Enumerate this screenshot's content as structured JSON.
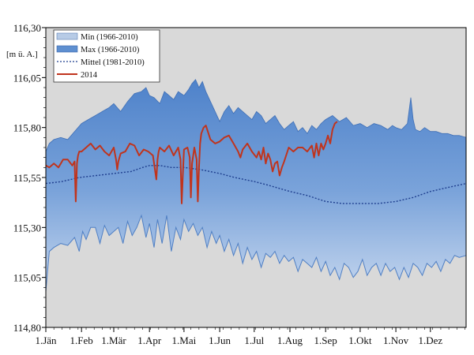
{
  "chart_data": {
    "type": "area",
    "unit_label": "[m ü. A.]",
    "ylim": [
      114.8,
      116.3
    ],
    "y_ticks": [
      "116,30",
      "116,05",
      "115,80",
      "115,55",
      "115,30",
      "115,05",
      "114,80"
    ],
    "y_tick_values": [
      116.3,
      116.05,
      115.8,
      115.55,
      115.3,
      115.05,
      114.8
    ],
    "x_ticks": [
      "1.Jän",
      "1.Feb",
      "1.Mär",
      "1.Apr",
      "1.Mai",
      "1.Jun",
      "1.Jul",
      "1.Aug",
      "1.Sep",
      "1.Okt",
      "1.Nov",
      "1.Dez"
    ],
    "x_tick_days": [
      1,
      32,
      60,
      91,
      121,
      152,
      182,
      213,
      244,
      274,
      305,
      335
    ],
    "xlim": [
      1,
      366
    ],
    "legend": [
      {
        "label": "Min (1966-2010)",
        "kind": "fill-light",
        "color": "#b7cbe6"
      },
      {
        "label": "Max  (1966-2010)",
        "kind": "fill-dark",
        "color": "#5e8fd0"
      },
      {
        "label": "Mittel  (1981-2010)",
        "kind": "dotted",
        "color": "#1f3f8f"
      },
      {
        "label": "2014",
        "kind": "line",
        "color": "#c0341d"
      }
    ],
    "colors": {
      "background": "#d9d9d9",
      "max_fill": "#5b8ed1",
      "min_line": "#4f7fc4",
      "mittel": "#1f3f8f",
      "year_2014": "#c0341d"
    },
    "series": [
      {
        "name": "Max  (1966-2010)",
        "x": [
          1,
          4,
          8,
          14,
          20,
          26,
          32,
          38,
          44,
          50,
          56,
          60,
          66,
          72,
          78,
          84,
          88,
          91,
          95,
          100,
          104,
          108,
          112,
          116,
          121,
          125,
          128,
          131,
          134,
          137,
          140,
          144,
          148,
          152,
          156,
          160,
          164,
          168,
          172,
          176,
          180,
          184,
          188,
          192,
          196,
          200,
          204,
          208,
          212,
          216,
          220,
          224,
          228,
          232,
          236,
          240,
          244,
          250,
          256,
          262,
          268,
          274,
          280,
          286,
          292,
          298,
          302,
          305,
          310,
          315,
          318,
          320,
          322,
          326,
          330,
          335,
          340,
          345,
          350,
          355,
          360,
          366
        ],
        "y": [
          115.68,
          115.72,
          115.74,
          115.75,
          115.74,
          115.78,
          115.82,
          115.84,
          115.86,
          115.88,
          115.9,
          115.92,
          115.88,
          115.93,
          115.97,
          115.98,
          116.0,
          115.96,
          115.95,
          115.92,
          115.98,
          115.96,
          115.94,
          115.98,
          115.96,
          115.99,
          116.02,
          116.04,
          116.0,
          116.03,
          115.98,
          115.93,
          115.88,
          115.83,
          115.88,
          115.91,
          115.87,
          115.9,
          115.88,
          115.86,
          115.84,
          115.88,
          115.86,
          115.82,
          115.84,
          115.86,
          115.82,
          115.79,
          115.81,
          115.83,
          115.78,
          115.8,
          115.77,
          115.81,
          115.79,
          115.82,
          115.84,
          115.86,
          115.83,
          115.85,
          115.81,
          115.82,
          115.8,
          115.82,
          115.81,
          115.79,
          115.81,
          115.8,
          115.79,
          115.82,
          115.95,
          115.84,
          115.79,
          115.78,
          115.8,
          115.78,
          115.78,
          115.77,
          115.77,
          115.76,
          115.76,
          115.75
        ]
      },
      {
        "name": "Mittel  (1981-2010)",
        "x": [
          1,
          15,
          30,
          45,
          60,
          75,
          85,
          91,
          100,
          110,
          121,
          135,
          152,
          165,
          182,
          195,
          213,
          228,
          244,
          258,
          274,
          290,
          305,
          320,
          335,
          350,
          366
        ],
        "y": [
          115.52,
          115.53,
          115.55,
          115.56,
          115.57,
          115.58,
          115.6,
          115.61,
          115.61,
          115.6,
          115.6,
          115.59,
          115.57,
          115.55,
          115.53,
          115.51,
          115.48,
          115.46,
          115.43,
          115.42,
          115.42,
          115.42,
          115.43,
          115.45,
          115.48,
          115.5,
          115.52
        ]
      },
      {
        "name": "Min (1966-2010)",
        "x": [
          1,
          4,
          8,
          14,
          20,
          26,
          30,
          33,
          36,
          40,
          44,
          48,
          52,
          56,
          60,
          64,
          68,
          72,
          76,
          80,
          84,
          88,
          91,
          95,
          98,
          102,
          106,
          110,
          114,
          118,
          121,
          125,
          129,
          133,
          137,
          141,
          145,
          149,
          152,
          156,
          160,
          164,
          168,
          172,
          176,
          180,
          184,
          188,
          192,
          196,
          200,
          204,
          208,
          212,
          216,
          220,
          224,
          228,
          232,
          236,
          240,
          244,
          248,
          252,
          256,
          260,
          264,
          268,
          272,
          276,
          280,
          284,
          288,
          292,
          296,
          300,
          304,
          308,
          312,
          316,
          320,
          324,
          328,
          332,
          336,
          340,
          344,
          348,
          352,
          356,
          360,
          366
        ],
        "y": [
          114.98,
          115.18,
          115.2,
          115.22,
          115.21,
          115.25,
          115.18,
          115.28,
          115.24,
          115.3,
          115.3,
          115.22,
          115.31,
          115.26,
          115.28,
          115.3,
          115.22,
          115.33,
          115.26,
          115.3,
          115.36,
          115.25,
          115.32,
          115.2,
          115.34,
          115.22,
          115.36,
          115.18,
          115.3,
          115.24,
          115.34,
          115.28,
          115.32,
          115.26,
          115.3,
          115.2,
          115.28,
          115.22,
          115.26,
          115.18,
          115.24,
          115.16,
          115.22,
          115.12,
          115.2,
          115.14,
          115.18,
          115.1,
          115.17,
          115.15,
          115.18,
          115.12,
          115.16,
          115.13,
          115.15,
          115.08,
          115.14,
          115.12,
          115.1,
          115.15,
          115.08,
          115.13,
          115.06,
          115.1,
          115.04,
          115.12,
          115.1,
          115.05,
          115.08,
          115.14,
          115.06,
          115.1,
          115.12,
          115.06,
          115.12,
          115.08,
          115.1,
          115.04,
          115.1,
          115.05,
          115.12,
          115.1,
          115.06,
          115.12,
          115.1,
          115.13,
          115.08,
          115.14,
          115.12,
          115.16,
          115.15,
          115.16
        ]
      },
      {
        "name": "2014",
        "x": [
          1,
          4,
          8,
          12,
          16,
          20,
          24,
          26,
          27,
          28,
          29,
          30,
          32,
          36,
          40,
          44,
          48,
          52,
          56,
          60,
          62,
          63,
          64,
          66,
          70,
          74,
          78,
          82,
          86,
          90,
          94,
          97,
          98,
          99,
          100,
          104,
          108,
          112,
          116,
          118,
          119,
          120,
          121,
          124,
          126,
          127,
          128,
          130,
          132,
          133,
          134,
          135,
          136,
          138,
          140,
          144,
          148,
          152,
          156,
          160,
          164,
          168,
          170,
          172,
          176,
          180,
          184,
          186,
          188,
          190,
          192,
          194,
          196,
          198,
          200,
          202,
          204,
          206,
          208,
          212,
          216,
          220,
          224,
          228,
          232,
          234,
          236,
          238,
          240,
          242,
          244,
          246,
          248,
          250,
          252,
          254
        ],
        "y": [
          115.61,
          115.6,
          115.62,
          115.6,
          115.64,
          115.64,
          115.61,
          115.63,
          115.43,
          115.62,
          115.66,
          115.68,
          115.68,
          115.7,
          115.72,
          115.69,
          115.71,
          115.68,
          115.66,
          115.7,
          115.64,
          115.59,
          115.63,
          115.67,
          115.68,
          115.72,
          115.71,
          115.66,
          115.69,
          115.68,
          115.66,
          115.54,
          115.64,
          115.68,
          115.7,
          115.68,
          115.71,
          115.66,
          115.7,
          115.64,
          115.42,
          115.56,
          115.69,
          115.7,
          115.65,
          115.45,
          115.62,
          115.7,
          115.64,
          115.43,
          115.6,
          115.72,
          115.77,
          115.8,
          115.81,
          115.74,
          115.72,
          115.73,
          115.75,
          115.76,
          115.72,
          115.68,
          115.65,
          115.69,
          115.72,
          115.68,
          115.65,
          115.68,
          115.64,
          115.7,
          115.62,
          115.67,
          115.64,
          115.58,
          115.62,
          115.63,
          115.56,
          115.6,
          115.63,
          115.7,
          115.68,
          115.7,
          115.7,
          115.68,
          115.71,
          115.65,
          115.72,
          115.66,
          115.72,
          115.69,
          115.72,
          115.76,
          115.72,
          115.79,
          115.82,
          115.83
        ]
      }
    ]
  }
}
